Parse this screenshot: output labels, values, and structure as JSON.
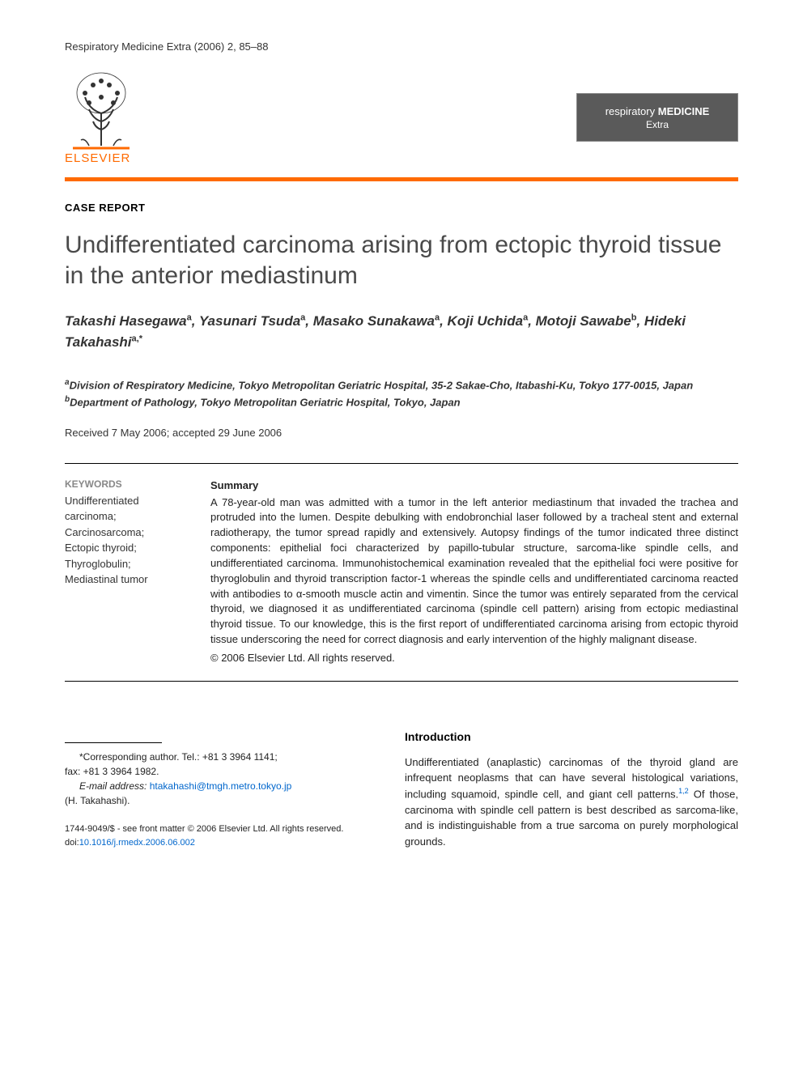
{
  "header": {
    "citation": "Respiratory Medicine Extra (2006) 2, 85–88"
  },
  "logos": {
    "elsevier_text": "ELSEVIER",
    "journal_badge_line1_resp": "respiratory ",
    "journal_badge_line1_med": "MEDICINE",
    "journal_badge_line2": "Extra"
  },
  "article": {
    "type": "CASE REPORT",
    "title": "Undifferentiated carcinoma arising from ectopic thyroid tissue in the anterior mediastinum",
    "authors_html": "Takashi Hasegawa<sup>a</sup>, Yasunari Tsuda<sup>a</sup>, Masako Sunakawa<sup>a</sup>, Koji Uchida<sup>a</sup>, Motoji Sawabe<sup>b</sup>, Hideki Takahashi<sup>a,*</sup>",
    "affiliations": {
      "a": "Division of Respiratory Medicine, Tokyo Metropolitan Geriatric Hospital, 35-2 Sakae-Cho, Itabashi-Ku, Tokyo 177-0015, Japan",
      "b": "Department of Pathology, Tokyo Metropolitan Geriatric Hospital, Tokyo, Japan"
    },
    "dates": "Received 7 May 2006; accepted 29 June 2006"
  },
  "keywords": {
    "heading": "KEYWORDS",
    "items": "Undifferentiated carcinoma;\nCarcinosarcoma;\nEctopic thyroid;\nThyroglobulin;\nMediastinal tumor"
  },
  "summary": {
    "heading": "Summary",
    "text": "A 78-year-old man was admitted with a tumor in the left anterior mediastinum that invaded the trachea and protruded into the lumen. Despite debulking with endobronchial laser followed by a tracheal stent and external radiotherapy, the tumor spread rapidly and extensively. Autopsy findings of the tumor indicated three distinct components: epithelial foci characterized by papillo-tubular structure, sarcoma-like spindle cells, and undifferentiated carcinoma. Immunohistochemical examination revealed that the epithelial foci were positive for thyroglobulin and thyroid transcription factor-1 whereas the spindle cells and undifferentiated carcinoma reacted with antibodies to α-smooth muscle actin and vimentin. Since the tumor was entirely separated from the cervical thyroid, we diagnosed it as undifferentiated carcinoma (spindle cell pattern) arising from ectopic mediastinal thyroid tissue. To our knowledge, this is the first report of undifferentiated carcinoma arising from ectopic thyroid tissue underscoring the need for correct diagnosis and early intervention of the highly malignant disease.",
    "copyright": "© 2006 Elsevier Ltd. All rights reserved."
  },
  "introduction": {
    "heading": "Introduction",
    "text_html": "Undifferentiated (anaplastic) carcinomas of the thyroid gland are infrequent neoplasms that can have several histological variations, including squamoid, spindle cell, and giant cell patterns.<sup>1,2</sup> Of those, carcinoma with spindle cell pattern is best described as sarcoma-like, and is indistinguishable from a true sarcoma on purely morphological grounds."
  },
  "footnote": {
    "corresponding": "*Corresponding author. Tel.: +81 3 3964 1141;",
    "fax": "fax: +81 3 3964 1982.",
    "email_label": "E-mail address:",
    "email": "htakahashi@tmgh.metro.tokyo.jp",
    "email_author": "(H. Takahashi)."
  },
  "bottom": {
    "line1": "1744-9049/$ - see front matter © 2006 Elsevier Ltd. All rights reserved.",
    "doi_label": "doi:",
    "doi": "10.1016/j.rmedx.2006.06.002"
  },
  "colors": {
    "accent": "#ff6a00",
    "link": "#0066cc",
    "badge_bg": "#5a5a5a",
    "text_primary": "#222222",
    "text_muted": "#888888"
  }
}
